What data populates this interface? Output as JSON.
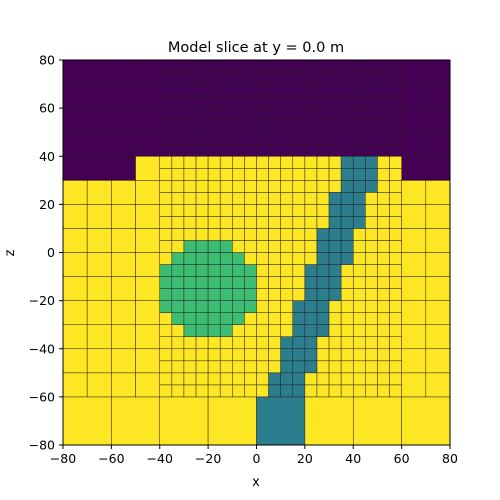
{
  "chart_data": {
    "type": "heatmap",
    "title": "Model slice at y = 0.0 m",
    "xlabel": "x",
    "ylabel": "z",
    "xlim": [
      -80,
      80
    ],
    "ylim": [
      -80,
      80
    ],
    "xticks": [
      -80,
      -60,
      -40,
      -20,
      0,
      20,
      40,
      60,
      80
    ],
    "yticks": [
      -80,
      -60,
      -40,
      -20,
      0,
      20,
      40,
      60,
      80
    ],
    "colormap": {
      "air": "#440154",
      "background": "#fde725",
      "sphere": "#3dbc74",
      "dipping_block": "#2c7d8e",
      "cell_edge": "#1f1f1f"
    },
    "units": [
      {
        "name": "air",
        "description": "top layer (purple)",
        "z_min": 40,
        "z_max": 80
      },
      {
        "name": "background",
        "description": "host (yellow)"
      },
      {
        "name": "sphere",
        "center_x": -20,
        "center_z": -15,
        "radius": 20
      },
      {
        "name": "dipping_block",
        "description": "dipping plate from (0,-80) up to (40,40)"
      }
    ],
    "topography_z": {
      "x": [
        -80,
        -75,
        -70,
        -65,
        -60,
        -55,
        -50,
        -45,
        -40,
        55,
        60,
        65,
        70,
        75,
        80
      ],
      "z": [
        25,
        30,
        35,
        35,
        35,
        35,
        40,
        40,
        40,
        40,
        35,
        35,
        35,
        30,
        30
      ]
    }
  }
}
